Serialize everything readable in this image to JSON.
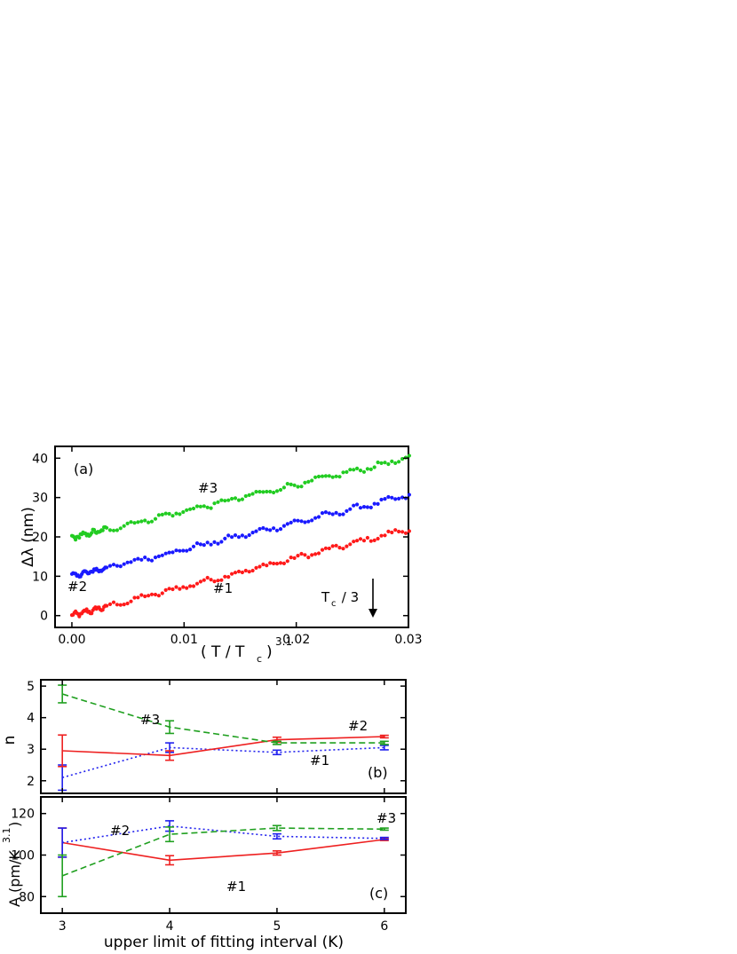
{
  "chart_data": [
    {
      "type": "scatter",
      "panel": "(a)",
      "xlabel_main": "( T / T",
      "xlabel_sub": "c",
      "xlabel_close": ")",
      "xlabel_sup": "3.1",
      "ylabel": "Δλ (nm)",
      "xlim": [
        -0.0015,
        0.03
      ],
      "ylim": [
        -3,
        43
      ],
      "xticks": [
        0.0,
        0.01,
        0.02,
        0.03
      ],
      "xtick_labels": [
        "0.00",
        "0.01",
        "0.02",
        "0.03"
      ],
      "yticks": [
        0,
        10,
        20,
        30,
        40
      ],
      "ytick_labels": [
        "0",
        "10",
        "20",
        "30",
        "40"
      ],
      "series": [
        {
          "label": "#1",
          "color": "#ff1a1a",
          "start": 0.0,
          "end": 22.0
        },
        {
          "label": "#2",
          "color": "#1a1aff",
          "start": 10.0,
          "end": 30.5
        },
        {
          "label": "#3",
          "color": "#22cc22",
          "start": 19.8,
          "end": 40.0
        }
      ],
      "annotation": {
        "main": "T",
        "sub": "c",
        "tail": " / 3",
        "x": 0.0273
      }
    },
    {
      "type": "line",
      "panel": "(b)",
      "ylabel": "n",
      "x": [
        3,
        4,
        5,
        6
      ],
      "xlim": [
        2.8,
        6.2
      ],
      "ylim": [
        1.6,
        5.2
      ],
      "yticks": [
        2,
        3,
        4,
        5
      ],
      "ytick_labels": [
        "2",
        "3",
        "4",
        "5"
      ],
      "series": [
        {
          "label": "#1",
          "color": "#2020ee",
          "dash": "dot",
          "values": [
            2.1,
            3.05,
            2.9,
            3.05
          ],
          "errors": [
            0.4,
            0.15,
            0.07,
            0.07
          ]
        },
        {
          "label": "#2",
          "color": "#ee2020",
          "dash": "solid",
          "values": [
            2.95,
            2.8,
            3.3,
            3.4
          ],
          "errors": [
            0.5,
            0.15,
            0.08,
            0.04
          ]
        },
        {
          "label": "#3",
          "color": "#20a020",
          "dash": "dash",
          "values": [
            4.75,
            3.7,
            3.2,
            3.2
          ],
          "errors": [
            0.28,
            0.2,
            0.05,
            0.05
          ]
        }
      ]
    },
    {
      "type": "line",
      "panel": "(c)",
      "ylabel_main": "A (pm/K",
      "ylabel_sup": "3.1",
      "ylabel_close": ")",
      "xlabel": "upper limit of fitting interval (K)",
      "x": [
        3,
        4,
        5,
        6
      ],
      "xlim": [
        2.8,
        6.2
      ],
      "ylim": [
        72,
        128
      ],
      "xticks": [
        3,
        4,
        5,
        6
      ],
      "xtick_labels": [
        "3",
        "4",
        "5",
        "6"
      ],
      "yticks": [
        80,
        100,
        120
      ],
      "ytick_labels": [
        "80",
        "100",
        "120"
      ],
      "series": [
        {
          "label": "#1",
          "color": "#ee2020",
          "dash": "solid",
          "values": [
            106,
            97.5,
            101,
            107.5
          ],
          "errors": [
            7,
            2.2,
            1,
            0.5
          ]
        },
        {
          "label": "#2",
          "color": "#2020ee",
          "dash": "dot",
          "values": [
            106,
            114,
            109,
            108
          ],
          "errors": [
            7,
            2.5,
            1.2,
            0.5
          ]
        },
        {
          "label": "#3",
          "color": "#20a020",
          "dash": "dash",
          "values": [
            90,
            110,
            113,
            112.5
          ],
          "errors": [
            10,
            3.5,
            1.2,
            0.5
          ]
        }
      ]
    }
  ]
}
